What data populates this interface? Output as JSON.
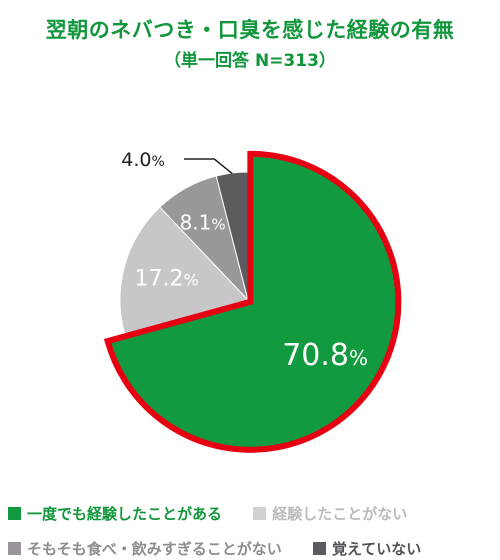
{
  "chart_data": {
    "type": "pie",
    "title": "翌朝のネバつき・口臭を感じた経験の有無",
    "subtitle": "（単一回答 N=313）",
    "slices": [
      {
        "label": "一度でも経験したことがある",
        "value": 70.8,
        "display": "70.8",
        "color": "#119a3f"
      },
      {
        "label": "経験したことがない",
        "value": 17.2,
        "display": "17.2",
        "color": "#c9c6c9"
      },
      {
        "label": "そもそも食べ・飲みすぎることがない",
        "value": 8.1,
        "display": "8.1",
        "color": "#9a969b"
      },
      {
        "label": "覚えていない",
        "value": 4.0,
        "display": "4.0",
        "color": "#5e5b60"
      }
    ],
    "unit": "%",
    "highlight_color": "#e60012",
    "legend_text_colors": [
      "#12963c",
      "#bdbabd",
      "#8f8c90",
      "#555257"
    ]
  }
}
